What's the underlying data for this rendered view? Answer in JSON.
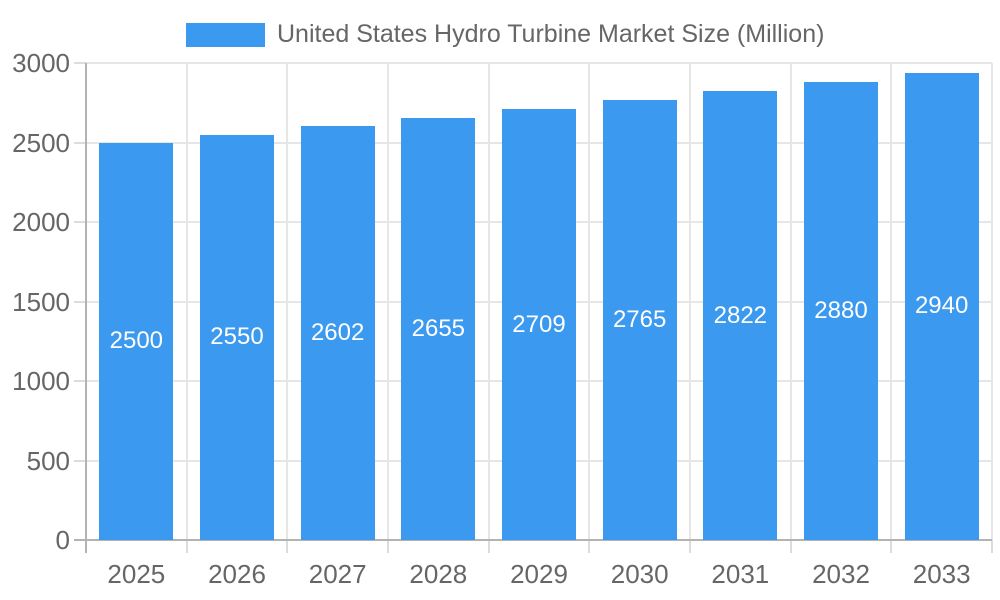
{
  "chart_data": {
    "type": "bar",
    "title": "United States Hydro Turbine Market Size (Million)",
    "legend_position": "top",
    "categories": [
      "2025",
      "2026",
      "2027",
      "2028",
      "2029",
      "2030",
      "2031",
      "2032",
      "2033"
    ],
    "series": [
      {
        "name": "United States Hydro Turbine Market Size (Million)",
        "values": [
          2500,
          2550,
          2602,
          2655,
          2709,
          2765,
          2822,
          2880,
          2940
        ]
      }
    ],
    "xlabel": "",
    "ylabel": "",
    "ylim": [
      0,
      3000
    ],
    "y_ticks": [
      0,
      500,
      1000,
      1500,
      2000,
      2500,
      3000
    ],
    "grid": true,
    "bar_value_labels": true
  },
  "style": {
    "bar_color": "#3B99F0",
    "bar_label_color": "#FFFFFF",
    "grid_color": "#E6E6E6",
    "tick_color": "#DCDCDC",
    "axis_line_color": "#B3B3B3",
    "text_color": "#666666",
    "background": "#FFFFFF"
  }
}
